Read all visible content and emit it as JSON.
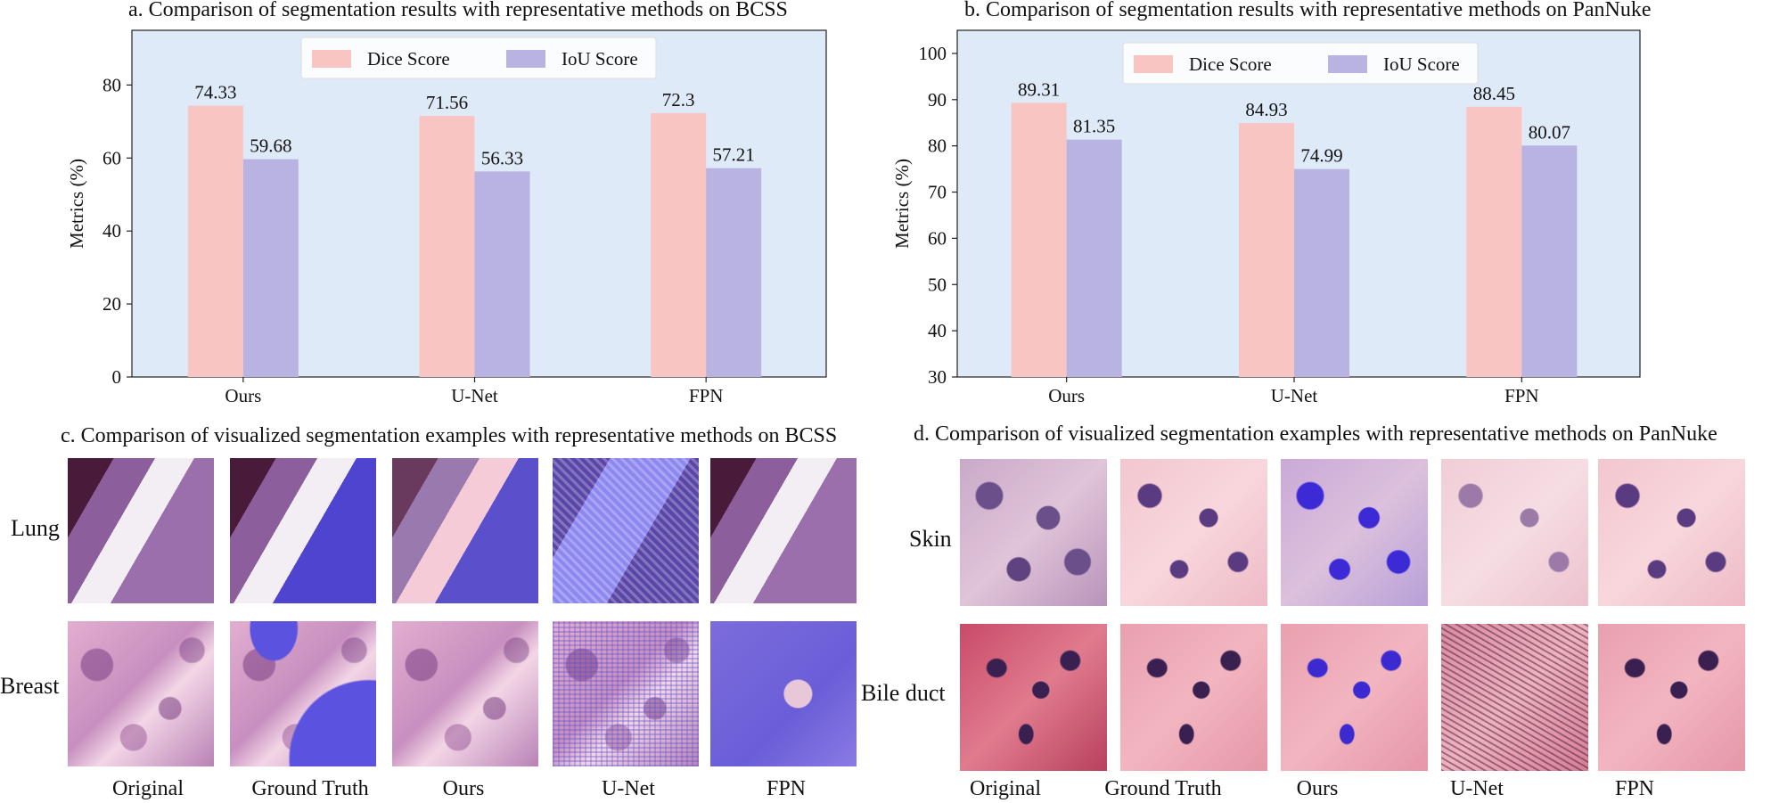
{
  "chart_data": [
    {
      "type": "bar",
      "title": "a. Comparison of segmentation results with representative methods on BCSS",
      "ylabel": "Metrics (%)",
      "xlabel": "",
      "categories": [
        "Ours",
        "U-Net",
        "FPN"
      ],
      "ylim": [
        0,
        95
      ],
      "yticks": [
        0,
        20,
        40,
        60,
        80
      ],
      "legend": "top-center",
      "series": [
        {
          "name": "Dice Score",
          "values": [
            74.33,
            71.56,
            72.3
          ],
          "labels": [
            "74.33",
            "71.56",
            "72.3"
          ],
          "color": "#f9c5c3"
        },
        {
          "name": "IoU Score",
          "values": [
            59.68,
            56.33,
            57.21
          ],
          "labels": [
            "59.68",
            "56.33",
            "57.21"
          ],
          "color": "#b8b3e0"
        }
      ],
      "background": "#dfeaf8"
    },
    {
      "type": "bar",
      "title": "b. Comparison of segmentation results with representative methods on PanNuke",
      "ylabel": "Metrics (%)",
      "xlabel": "",
      "categories": [
        "Ours",
        "U-Net",
        "FPN"
      ],
      "ylim": [
        30,
        105
      ],
      "yticks": [
        30,
        40,
        50,
        60,
        70,
        80,
        90,
        100
      ],
      "legend": "top-center",
      "series": [
        {
          "name": "Dice Score",
          "values": [
            89.31,
            84.93,
            88.45
          ],
          "labels": [
            "89.31",
            "84.93",
            "88.45"
          ],
          "color": "#f9c5c3"
        },
        {
          "name": "IoU Score",
          "values": [
            81.35,
            74.99,
            80.07
          ],
          "labels": [
            "81.35",
            "74.99",
            "80.07"
          ],
          "color": "#b8b3e0"
        }
      ],
      "background": "#dfeaf8"
    }
  ],
  "panel_c": {
    "title": "c. Comparison of visualized segmentation examples with representative methods on BCSS",
    "rows": [
      "Lung",
      "Breast"
    ],
    "columns": [
      "Original",
      "Ground Truth",
      "Ours",
      "U-Net",
      "FPN"
    ]
  },
  "panel_d": {
    "title": "d. Comparison of visualized segmentation examples with representative methods on PanNuke",
    "rows": [
      "Skin",
      "Bile duct"
    ],
    "columns": [
      "Original",
      "Ground Truth",
      "Ours",
      "U-Net",
      "FPN"
    ]
  },
  "colors": {
    "dice": "#f9c5c3",
    "iou": "#b8b3e0",
    "plot_bg": "#dfeaf8",
    "tissue_pink": "#d99ab8",
    "tissue_purple": "#8e5aa0",
    "mask_blue": "#5b52e0"
  }
}
